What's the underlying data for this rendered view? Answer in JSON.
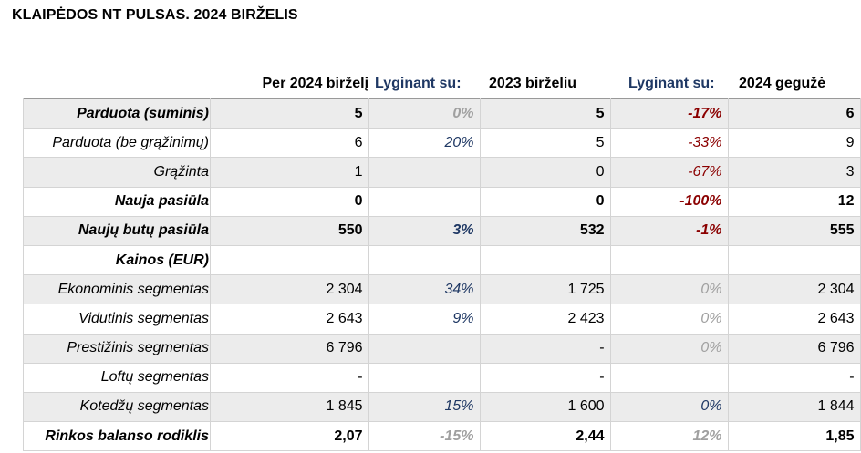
{
  "title": "KLAIPĖDOS NT PULSAS. 2024 BIRŽELIS",
  "headers": [
    "",
    "Per 2024 birželį",
    "Lyginant su:",
    "2023 birželiu",
    "Lyginant su:",
    "2024 gegužė"
  ],
  "rows": [
    {
      "label": "Parduota (suminis)",
      "v1": "5",
      "c1": "0%",
      "c1_color": "gray",
      "v2": "5",
      "c2": "-17%",
      "c2_color": "red",
      "v3": "6",
      "bold": true,
      "shade": true
    },
    {
      "label": "Parduota (be grąžinimų)",
      "v1": "6",
      "c1": "20%",
      "c1_color": "blue",
      "v2": "5",
      "c2": "-33%",
      "c2_color": "red",
      "v3": "9",
      "bold": false,
      "shade": false
    },
    {
      "label": "Grąžinta",
      "v1": "1",
      "c1": "",
      "c1_color": "",
      "v2": "0",
      "c2": "-67%",
      "c2_color": "red",
      "v3": "3",
      "bold": false,
      "shade": true
    },
    {
      "label": "Nauja pasiūla",
      "v1": "0",
      "c1": "",
      "c1_color": "",
      "v2": "0",
      "c2": "-100%",
      "c2_color": "red",
      "v3": "12",
      "bold": true,
      "shade": false
    },
    {
      "label": "Naujų butų pasiūla",
      "v1": "550",
      "c1": "3%",
      "c1_color": "blue",
      "v2": "532",
      "c2": "-1%",
      "c2_color": "red",
      "v3": "555",
      "bold": true,
      "shade": true
    },
    {
      "label": "Kainos (EUR)",
      "v1": "",
      "c1": "",
      "c1_color": "",
      "v2": "",
      "c2": "",
      "c2_color": "",
      "v3": "",
      "bold": true,
      "shade": false
    },
    {
      "label": "Ekonominis segmentas",
      "v1": "2 304",
      "c1": "34%",
      "c1_color": "blue",
      "v2": "1 725",
      "c2": "0%",
      "c2_color": "gray",
      "v3": "2 304",
      "bold": false,
      "shade": true
    },
    {
      "label": "Vidutinis segmentas",
      "v1": "2 643",
      "c1": "9%",
      "c1_color": "blue",
      "v2": "2 423",
      "c2": "0%",
      "c2_color": "gray",
      "v3": "2 643",
      "bold": false,
      "shade": false
    },
    {
      "label": "Prestižinis segmentas",
      "v1": "6 796",
      "c1": "",
      "c1_color": "",
      "v2": "-",
      "c2": "0%",
      "c2_color": "gray",
      "v3": "6 796",
      "bold": false,
      "shade": true
    },
    {
      "label": "Loftų segmentas",
      "v1": "-",
      "c1": "",
      "c1_color": "",
      "v2": "-",
      "c2": "",
      "c2_color": "",
      "v3": "-",
      "bold": false,
      "shade": false
    },
    {
      "label": "Kotedžų segmentas",
      "v1": "1 845",
      "c1": "15%",
      "c1_color": "blue",
      "v2": "1 600",
      "c2": "0%",
      "c2_color": "blue",
      "v3": "1 844",
      "bold": false,
      "shade": true
    },
    {
      "label": "Rinkos balanso rodiklis",
      "v1": "2,07",
      "c1": "-15%",
      "c1_color": "gray",
      "v2": "2,44",
      "c2": "12%",
      "c2_color": "gray",
      "v3": "1,85",
      "bold": true,
      "shade": false
    }
  ]
}
